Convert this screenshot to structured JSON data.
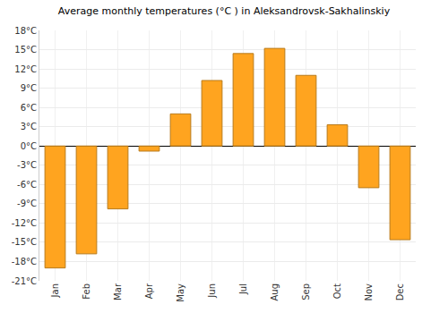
{
  "chart_data": {
    "type": "bar",
    "title": "Average monthly temperatures (°C ) in Aleksandrovsk-Sakhalinskiy",
    "categories": [
      "Jan",
      "Feb",
      "Mar",
      "Apr",
      "May",
      "Jun",
      "Jul",
      "Aug",
      "Sep",
      "Oct",
      "Nov",
      "Dec"
    ],
    "values": [
      -19.0,
      -16.8,
      -9.8,
      -0.8,
      5.0,
      10.2,
      14.4,
      15.2,
      11.0,
      3.3,
      -6.5,
      -14.6
    ],
    "color": "#ffa41f",
    "ylim": [
      -21,
      18
    ],
    "yticks": [
      {
        "value": -21,
        "label": "-21°C"
      },
      {
        "value": -18,
        "label": "-18°C"
      },
      {
        "value": -15,
        "label": "-15°C"
      },
      {
        "value": -12,
        "label": "-12°C"
      },
      {
        "value": -9,
        "label": "-9°C"
      },
      {
        "value": -6,
        "label": "-6°C"
      },
      {
        "value": -3,
        "label": "-3°C"
      },
      {
        "value": 0,
        "label": "0°C"
      },
      {
        "value": 3,
        "label": "3°C"
      },
      {
        "value": 6,
        "label": "6°C"
      },
      {
        "value": 9,
        "label": "9°C"
      },
      {
        "value": 12,
        "label": "12°C"
      },
      {
        "value": 15,
        "label": "15°C"
      },
      {
        "value": 18,
        "label": "18°C"
      }
    ],
    "grid": true
  }
}
